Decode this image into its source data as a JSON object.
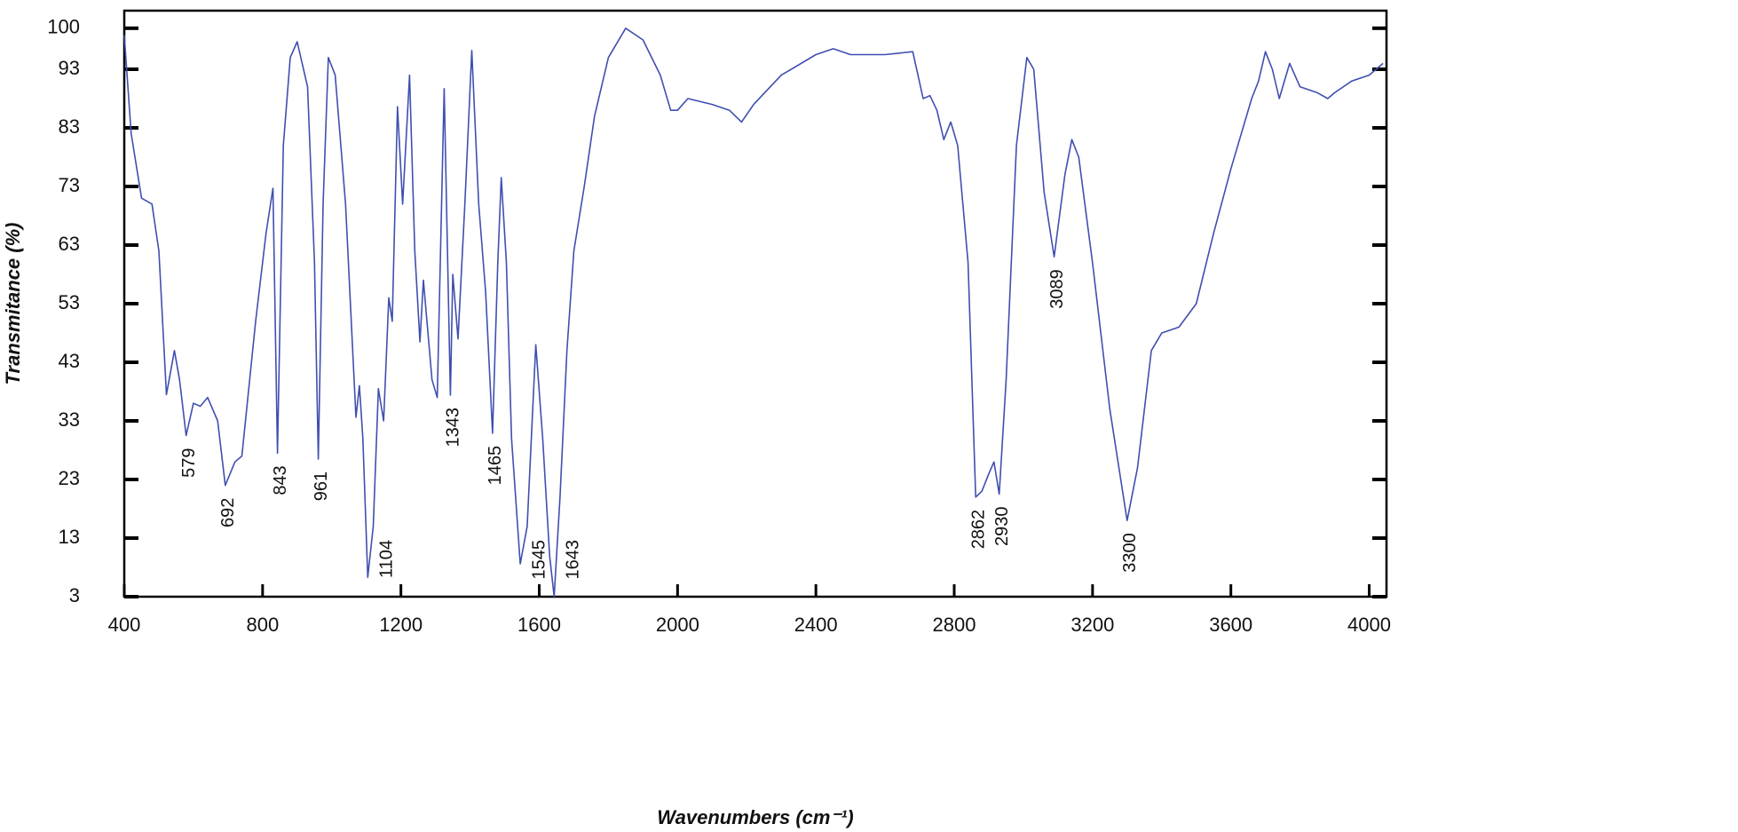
{
  "chart_data": {
    "type": "line",
    "xlabel": "Wavenumbers (cm⁻¹)",
    "ylabel": "Transmitance (%)",
    "xlim": [
      400,
      4050
    ],
    "ylim": [
      3,
      103
    ],
    "xticks": [
      400,
      800,
      1200,
      1600,
      2000,
      2400,
      2800,
      3200,
      3600,
      4000
    ],
    "yticks": [
      3,
      13,
      23,
      33,
      43,
      53,
      63,
      73,
      83,
      93,
      100
    ],
    "x": [
      400,
      420,
      450,
      480,
      500,
      522,
      545,
      560,
      579,
      600,
      620,
      641,
      670,
      692,
      720,
      740,
      780,
      810,
      830,
      843,
      860,
      880,
      900,
      930,
      950,
      961,
      975,
      990,
      1010,
      1040,
      1070,
      1080,
      1090,
      1104,
      1120,
      1135,
      1150,
      1165,
      1175,
      1190,
      1205,
      1225,
      1240,
      1255,
      1265,
      1290,
      1305,
      1325,
      1343,
      1350,
      1365,
      1385,
      1405,
      1425,
      1445,
      1465,
      1480,
      1490,
      1505,
      1520,
      1545,
      1565,
      1590,
      1610,
      1630,
      1643,
      1660,
      1680,
      1700,
      1730,
      1760,
      1800,
      1850,
      1900,
      1950,
      1980,
      2000,
      2030,
      2100,
      2150,
      2185,
      2220,
      2300,
      2400,
      2450,
      2500,
      2600,
      2680,
      2710,
      2730,
      2750,
      2770,
      2790,
      2810,
      2840,
      2862,
      2880,
      2900,
      2915,
      2930,
      2950,
      2980,
      3010,
      3030,
      3060,
      3089,
      3120,
      3140,
      3160,
      3200,
      3250,
      3300,
      3330,
      3370,
      3400,
      3450,
      3500,
      3550,
      3600,
      3620,
      3660,
      3680,
      3700,
      3720,
      3740,
      3770,
      3800,
      3850,
      3880,
      3900,
      3950,
      4000,
      4040
    ],
    "series": [
      {
        "color": "#3f4fb0",
        "values": [
          98.8,
          82,
          71,
          70,
          62,
          37.5,
          45,
          40,
          30.5,
          36,
          35.5,
          37,
          33,
          22,
          26,
          27,
          50,
          65,
          72.7,
          27.5,
          80,
          95,
          97.7,
          90,
          60,
          26.5,
          70,
          95,
          92,
          70,
          33.6,
          39,
          30,
          6.3,
          15,
          38.5,
          33,
          54,
          50,
          86.6,
          70,
          92,
          62,
          46.5,
          57,
          40,
          37,
          89.7,
          37.4,
          58,
          47,
          70,
          96.2,
          70,
          55,
          30.9,
          60,
          74.5,
          60,
          30,
          8.6,
          15,
          46,
          30,
          10,
          3,
          20,
          45,
          62,
          73,
          85,
          95,
          100,
          98,
          92,
          86,
          86,
          88,
          87,
          86,
          84,
          87,
          92,
          95.5,
          96.5,
          95.5,
          95.5,
          96,
          88,
          88.5,
          86,
          81,
          84,
          80,
          60,
          20,
          21,
          24,
          26,
          20.5,
          40,
          80,
          95,
          93,
          72,
          61,
          75,
          81,
          78,
          60,
          35,
          16,
          25,
          45,
          48,
          49,
          53,
          65,
          76,
          80,
          88,
          91,
          96,
          93,
          88,
          94,
          90,
          89,
          88,
          89,
          91,
          92,
          94
        ]
      }
    ],
    "peak_labels": [
      579,
      692,
      843,
      961,
      1104,
      1343,
      1465,
      1545,
      1643,
      2862,
      2930,
      3089,
      3300
    ]
  }
}
